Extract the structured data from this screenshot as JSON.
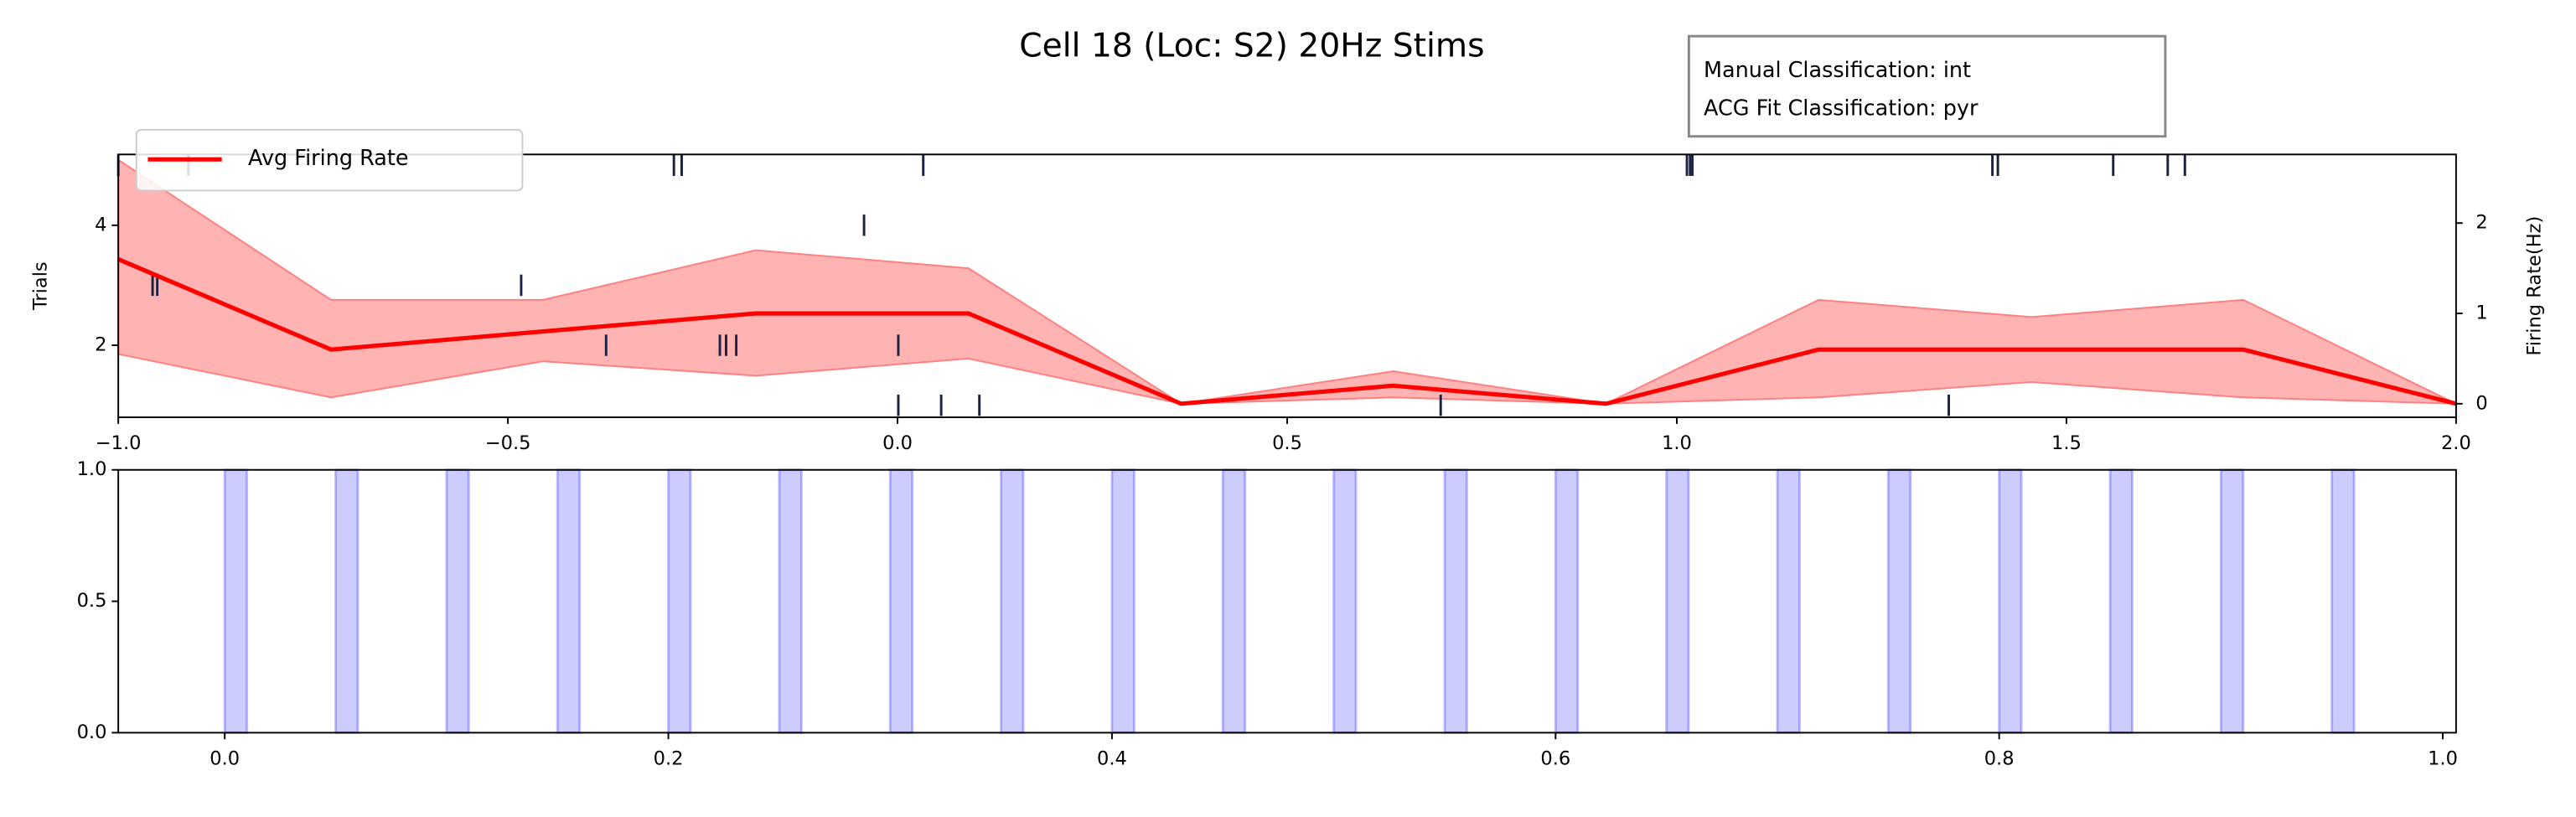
{
  "chart_data": [
    {
      "type": "raster",
      "title": "Cell 18 (Loc: S2) 20Hz Stims",
      "annotation": [
        "Manual Classification: int",
        "ACG Fit Classification: pyr"
      ],
      "ylabel": "Trials",
      "y2label": "Firing Rate(Hz)",
      "xlim": [
        -1.0,
        2.0
      ],
      "xticks": [
        {
          "value": -1.0,
          "label": "−1.0"
        },
        {
          "value": -0.5,
          "label": "−0.5"
        },
        {
          "value": 0.0,
          "label": "0.0"
        },
        {
          "value": 0.5,
          "label": "0.5"
        },
        {
          "value": 1.0,
          "label": "1.0"
        },
        {
          "value": 1.5,
          "label": "1.5"
        },
        {
          "value": 2.0,
          "label": "2.0"
        }
      ],
      "ylim": [
        0.8,
        5.18
      ],
      "yticks": [
        2,
        4
      ],
      "y2lim": [
        -0.15,
        2.76
      ],
      "y2ticks": [
        0,
        1,
        2
      ],
      "legend": "upper left",
      "raster": {
        "color": "#1c2340",
        "trials": [
          1,
          2,
          3,
          4,
          5
        ],
        "spikes": [
          [
            0.001,
            0.056,
            0.105,
            0.697,
            1.349
          ],
          [
            -0.374,
            -0.228,
            -0.22,
            -0.207,
            0.001
          ],
          [
            -0.956,
            -0.95,
            -0.483
          ],
          [
            -0.043
          ],
          [
            -1.0,
            -0.91,
            -0.287,
            -0.277,
            0.033,
            1.013,
            1.017,
            1.02,
            1.405,
            1.412,
            1.56,
            1.63,
            1.652
          ]
        ]
      },
      "series": [
        {
          "name": "Avg Firing Rate",
          "color": "#ff0000",
          "band_color": "#ff8080",
          "axis": "y2",
          "x": [
            -1.0,
            -0.727,
            -0.455,
            -0.182,
            0.091,
            0.364,
            0.636,
            0.909,
            1.182,
            1.455,
            1.727,
            2.0
          ],
          "values": [
            1.6,
            0.6,
            0.8,
            1.0,
            1.0,
            0,
            0.2,
            0,
            0.6,
            0.6,
            0.6,
            0
          ],
          "upper": [
            2.7,
            1.15,
            1.15,
            1.7,
            1.5,
            0,
            0.36,
            0,
            1.15,
            0.96,
            1.15,
            0
          ],
          "lower": [
            0.55,
            0.07,
            0.47,
            0.31,
            0.5,
            0,
            0.07,
            0,
            0.07,
            0.24,
            0.07,
            0
          ]
        }
      ]
    },
    {
      "type": "span",
      "xlim": [
        -0.048,
        1.006
      ],
      "xticks": [
        {
          "value": 0.0,
          "label": "0.0"
        },
        {
          "value": 0.2,
          "label": "0.2"
        },
        {
          "value": 0.4,
          "label": "0.4"
        },
        {
          "value": 0.6,
          "label": "0.6"
        },
        {
          "value": 0.8,
          "label": "0.8"
        },
        {
          "value": 1.0,
          "label": "1.0"
        }
      ],
      "ylim": [
        0,
        1
      ],
      "yticks": [
        {
          "value": 0.0,
          "label": "0.0"
        },
        {
          "value": 0.5,
          "label": "0.5"
        },
        {
          "value": 1.0,
          "label": "1.0"
        }
      ],
      "color": "#0000ff",
      "spans": {
        "starts": [
          0.0,
          0.05,
          0.1,
          0.15,
          0.2,
          0.25,
          0.3,
          0.35,
          0.4,
          0.45,
          0.5,
          0.55,
          0.6,
          0.65,
          0.7,
          0.75,
          0.8,
          0.85,
          0.9,
          0.95
        ],
        "ends": [
          0.01,
          0.06,
          0.11,
          0.16,
          0.21,
          0.26,
          0.31,
          0.36,
          0.41,
          0.46,
          0.51,
          0.56,
          0.61,
          0.66,
          0.71,
          0.76,
          0.81,
          0.86,
          0.91,
          0.96
        ]
      }
    }
  ]
}
